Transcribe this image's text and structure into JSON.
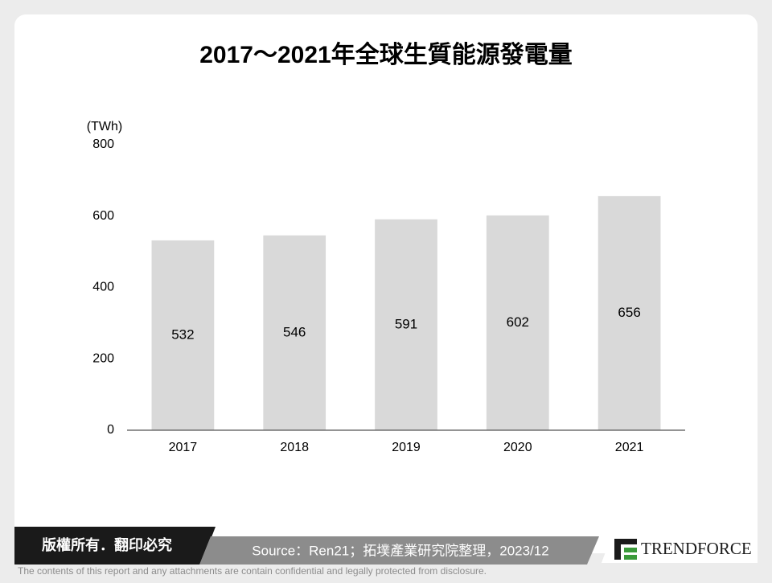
{
  "chart_data": {
    "type": "bar",
    "title": "2017～2021年全球生質能源發電量",
    "y_label": "(TWh)",
    "categories": [
      "2017",
      "2018",
      "2019",
      "2020",
      "2021"
    ],
    "values": [
      532,
      546,
      591,
      602,
      656
    ],
    "color": "#d9d9d9",
    "ylim": [
      0,
      800
    ],
    "yticks": [
      0,
      200,
      400,
      600,
      800
    ],
    "grid": false
  },
  "footer": {
    "copyright": "版權所有．翻印必究",
    "source": "Source：Ren21；拓墣產業研究院整理，2023/12",
    "logo": "TRENDFORCE",
    "disclaimer": "The contents of this report and any attachments are contain confidential and legally protected from disclosure."
  }
}
